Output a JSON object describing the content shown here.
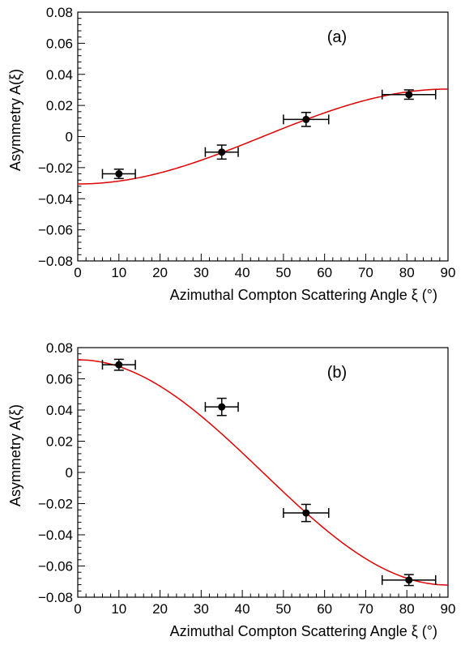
{
  "chart_data": [
    {
      "type": "scatter",
      "panel_label": "(a)",
      "xlabel": "Azimuthal Compton Scattering Angle ξ (°)",
      "ylabel": "Asymmetry A(ξ)",
      "xlim": [
        0,
        90
      ],
      "ylim": [
        -0.08,
        0.08
      ],
      "xticks": [
        0,
        10,
        20,
        30,
        40,
        50,
        60,
        70,
        80,
        90
      ],
      "yticks": [
        -0.08,
        -0.06,
        -0.04,
        -0.02,
        0,
        0.02,
        0.04,
        0.06,
        0.08
      ],
      "ytick_labels": [
        "−0.08",
        "−0.06",
        "−0.04",
        "−0.02",
        "0",
        "0.02",
        "0.04",
        "0.06",
        "0.08"
      ],
      "grid": false,
      "points": [
        {
          "x": 10.0,
          "y": -0.024,
          "xerr": 4.0,
          "yerr": 0.003
        },
        {
          "x": 35.0,
          "y": -0.01,
          "xerr": 4.0,
          "yerr": 0.0045
        },
        {
          "x": 55.5,
          "y": 0.011,
          "xerr": 5.5,
          "yerr": 0.0045
        },
        {
          "x": 80.5,
          "y": 0.027,
          "xerr": 6.5,
          "yerr": 0.003
        }
      ],
      "fit": {
        "form": "-A cos(2ξ)",
        "amplitude": 0.0305,
        "color": "#e00000"
      }
    },
    {
      "type": "scatter",
      "panel_label": "(b)",
      "xlabel": "Azimuthal Compton Scattering Angle ξ (°)",
      "ylabel": "Asymmetry A(ξ)",
      "xlim": [
        0,
        90
      ],
      "ylim": [
        -0.08,
        0.08
      ],
      "xticks": [
        0,
        10,
        20,
        30,
        40,
        50,
        60,
        70,
        80,
        90
      ],
      "yticks": [
        -0.08,
        -0.06,
        -0.04,
        -0.02,
        0,
        0.02,
        0.04,
        0.06,
        0.08
      ],
      "ytick_labels": [
        "−0.08",
        "−0.06",
        "−0.04",
        "−0.02",
        "0",
        "0.02",
        "0.04",
        "0.06",
        "0.08"
      ],
      "grid": false,
      "points": [
        {
          "x": 10.0,
          "y": 0.069,
          "xerr": 4.0,
          "yerr": 0.0035
        },
        {
          "x": 35.0,
          "y": 0.042,
          "xerr": 4.0,
          "yerr": 0.0055
        },
        {
          "x": 55.5,
          "y": -0.026,
          "xerr": 5.5,
          "yerr": 0.0055
        },
        {
          "x": 80.5,
          "y": -0.069,
          "xerr": 6.5,
          "yerr": 0.0035
        }
      ],
      "fit": {
        "form": "A cos(2ξ)",
        "amplitude": 0.0722,
        "color": "#e00000"
      }
    }
  ]
}
